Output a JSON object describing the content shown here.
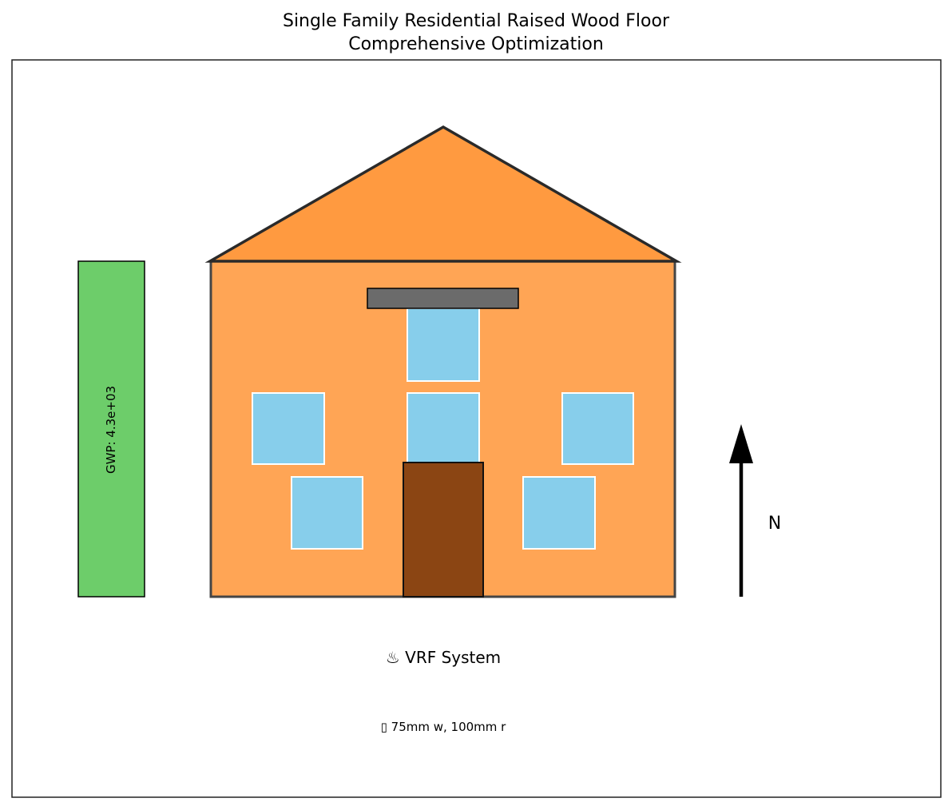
{
  "title": {
    "line1": "Single Family Residential Raised Wood Floor",
    "line2": "Comprehensive Optimization"
  },
  "gwp_bar": {
    "label": "GWP: 4.3e+03",
    "color": "#6dcd6a"
  },
  "compass": {
    "label": "N"
  },
  "hvac": {
    "label": "♨ VRF System"
  },
  "insulation": {
    "label": "▯ 75mm w, 100mm r"
  },
  "colors": {
    "roof": "#ff9a40",
    "wall": "#ffa555",
    "window": "#87ceeb",
    "door": "#8b4513",
    "overhang": "#6b6b6b",
    "outline": "#333333"
  }
}
